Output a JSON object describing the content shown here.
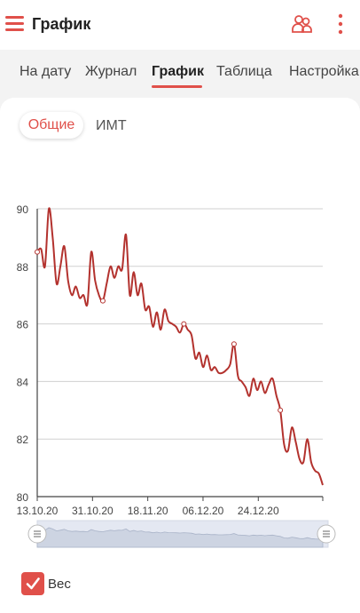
{
  "appbar": {
    "title": "График",
    "menu_icon": "menu-icon",
    "users_icon": "users-icon",
    "more_icon": "more-vert-icon"
  },
  "tabs": [
    {
      "label": "На дату"
    },
    {
      "label": "Журнал"
    },
    {
      "label": "График",
      "active": true
    },
    {
      "label": "Таблица"
    },
    {
      "label": "Настройка"
    }
  ],
  "segments": {
    "active": "Общие",
    "other": "ИМТ"
  },
  "legend": {
    "label": "Вес",
    "checked": true
  },
  "colors": {
    "accent": "#e0504a",
    "line": "#b3322e",
    "grid": "#d0d0d0"
  },
  "chart_data": {
    "type": "line",
    "ylim": [
      80,
      90
    ],
    "yticks": [
      "90",
      "88",
      "86",
      "84",
      "82",
      "80"
    ],
    "xticks": [
      "13.10.20",
      "31.10.20",
      "18.11.20",
      "06.12.20",
      "24.12.20"
    ],
    "x_start": "13.10.20",
    "x_end": "14.01.21",
    "series": [
      {
        "values": [
          88.5,
          88.6,
          88.0,
          90.0,
          89.0,
          87.4,
          88.0,
          88.7,
          87.5,
          87.0,
          87.3,
          86.9,
          87.0,
          86.7,
          88.5,
          87.5,
          87.0,
          86.8,
          87.4,
          88.0,
          87.6,
          88.0,
          87.9,
          89.1,
          87.0,
          87.8,
          87.0,
          87.4,
          86.5,
          86.6,
          85.9,
          86.4,
          85.8,
          86.5,
          86.1,
          86.0,
          85.9,
          85.7,
          86.0,
          85.8,
          85.6,
          84.8,
          85.0,
          84.5,
          84.9,
          84.4,
          84.5,
          84.3,
          84.3,
          84.4,
          84.6,
          85.3,
          84.2,
          84.0,
          83.8,
          83.5,
          84.1,
          83.7,
          84.0,
          83.6,
          83.9,
          84.1,
          83.5,
          83.0,
          81.8,
          81.6,
          82.4,
          81.9,
          81.3,
          81.2,
          82.0,
          81.2,
          80.9,
          80.8,
          80.4
        ]
      }
    ]
  }
}
